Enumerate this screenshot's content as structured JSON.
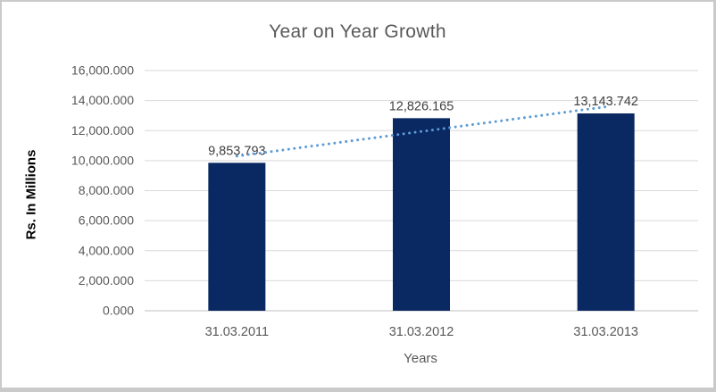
{
  "chart_data": {
    "type": "bar",
    "title": "Year on Year Growth",
    "xlabel": "Years",
    "ylabel": "Rs. In Millions",
    "categories": [
      "31.03.2011",
      "31.03.2012",
      "31.03.2013"
    ],
    "values": [
      9853.793,
      12826.165,
      13143.742
    ],
    "data_labels": [
      "9,853.793",
      "12,826.165",
      "13,143.742"
    ],
    "ylim": [
      0,
      16000
    ],
    "ytick_step": 2000,
    "ytick_labels": [
      "0.000",
      "2,000.000",
      "4,000.000",
      "6,000.000",
      "8,000.000",
      "10,000.000",
      "12,000.000",
      "14,000.000",
      "16,000.000"
    ],
    "grid": true,
    "legend": "none",
    "trendline": {
      "type": "linear",
      "style": "dotted"
    },
    "colors": {
      "bar": "#0a2862",
      "trendline": "#5b9bd5",
      "gridline": "#d9d9d9",
      "axis_line": "#bfbfbf",
      "title_text": "#595959",
      "tick_text": "#595959",
      "data_label_text": "#404040",
      "axis_title_text": "#000000",
      "frame_border": "#cacaca",
      "background": "#ffffff"
    }
  }
}
